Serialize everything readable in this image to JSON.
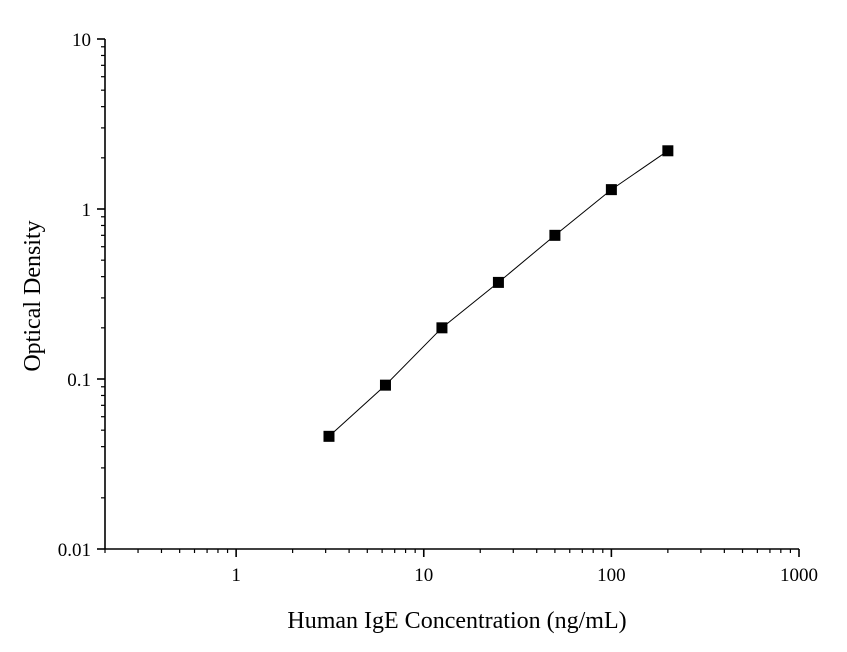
{
  "chart_data": {
    "type": "scatter",
    "title": "",
    "xlabel": "Human IgE Concentration (ng/mL)",
    "ylabel": "Optical Density",
    "x_scale": "log",
    "y_scale": "log",
    "xlim": [
      0.2,
      1000
    ],
    "ylim": [
      0.01,
      10
    ],
    "x_tick_labels": [
      "1",
      "10",
      "100",
      "1000"
    ],
    "x_tick_values": [
      1,
      10,
      100,
      1000
    ],
    "y_tick_labels": [
      "0.01",
      "0.1",
      "1",
      "10"
    ],
    "y_tick_values": [
      0.01,
      0.1,
      1,
      10
    ],
    "grid": false,
    "legend": "none",
    "series": [
      {
        "x": [
          3.125,
          6.25,
          12.5,
          25,
          50,
          100,
          200
        ],
        "y": [
          0.046,
          0.092,
          0.2,
          0.37,
          0.7,
          1.3,
          2.2
        ],
        "marker": "square",
        "line": true,
        "color": "#000000"
      }
    ]
  }
}
